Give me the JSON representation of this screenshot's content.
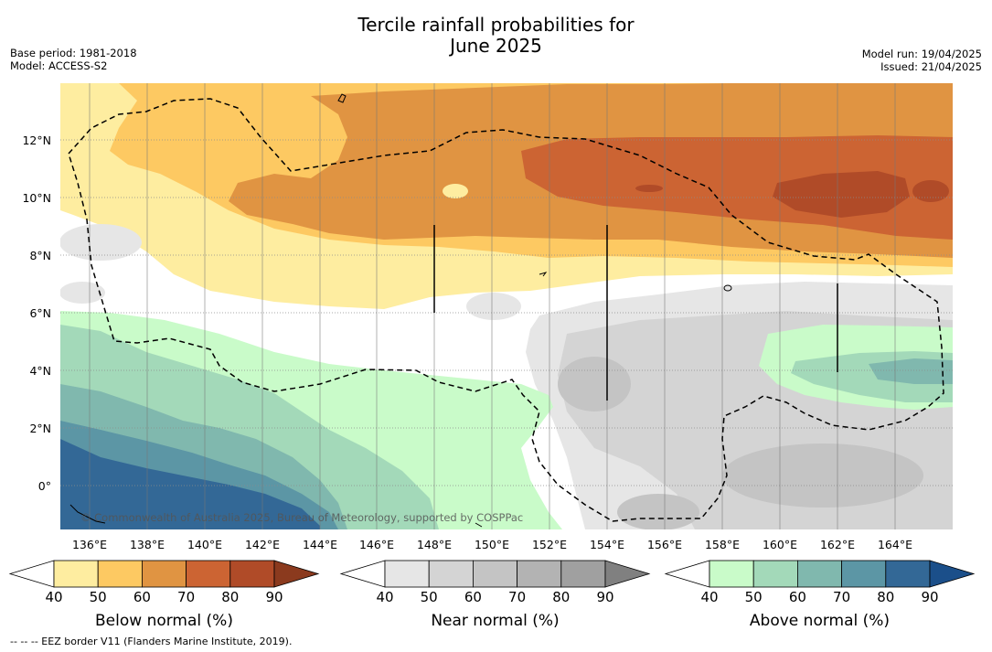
{
  "header": {
    "title_line1": "Tercile rainfall probabilities for",
    "title_line2": "June 2025",
    "base_period": "Base period: 1981-2018",
    "model": "Model: ACCESS-S2",
    "model_run": "Model run: 19/04/2025",
    "issued": "Issued: 21/04/2025"
  },
  "map": {
    "lat_labels": [
      "12°N",
      "10°N",
      "8°N",
      "6°N",
      "4°N",
      "2°N",
      "0°"
    ],
    "lon_labels": [
      "136°E",
      "138°E",
      "140°E",
      "142°E",
      "144°E",
      "146°E",
      "148°E",
      "150°E",
      "152°E",
      "154°E",
      "156°E",
      "158°E",
      "160°E",
      "162°E",
      "164°E"
    ],
    "copyright": "© Commonwealth of Australia 2025, Bureau of Meteorology, supported by COSPPac"
  },
  "legends": [
    {
      "label": "Below normal (%)",
      "ticks": [
        "40",
        "50",
        "60",
        "70",
        "80",
        "90"
      ],
      "colors": [
        "#ffffff",
        "#feeda0",
        "#fdc962",
        "#e09442",
        "#cc6433",
        "#b04b28",
        "#8b3a1e"
      ]
    },
    {
      "label": "Near normal (%)",
      "ticks": [
        "40",
        "50",
        "60",
        "70",
        "80",
        "90"
      ],
      "colors": [
        "#ffffff",
        "#e6e6e6",
        "#d4d4d4",
        "#c4c4c4",
        "#b3b3b3",
        "#a0a0a0",
        "#808080"
      ]
    },
    {
      "label": "Above normal (%)",
      "ticks": [
        "40",
        "50",
        "60",
        "70",
        "80",
        "90"
      ],
      "colors": [
        "#ffffff",
        "#c9fbc9",
        "#a3d9b9",
        "#80b8ae",
        "#5c96a5",
        "#336896",
        "#1b4f8a"
      ]
    }
  ],
  "footnote": "--  --  -- EEZ border V11 (Flanders Marine Institute, 2019)."
}
